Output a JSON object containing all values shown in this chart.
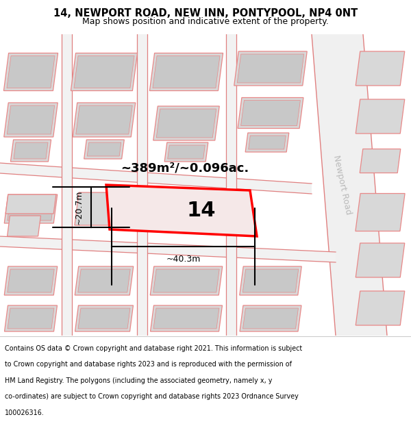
{
  "title_line1": "14, NEWPORT ROAD, NEW INN, PONTYPOOL, NP4 0NT",
  "title_line2": "Map shows position and indicative extent of the property.",
  "footer_lines": [
    "Contains OS data © Crown copyright and database right 2021. This information is subject",
    "to Crown copyright and database rights 2023 and is reproduced with the permission of",
    "HM Land Registry. The polygons (including the associated geometry, namely x, y",
    "co-ordinates) are subject to Crown copyright and database rights 2023 Ordnance Survey",
    "100026316."
  ],
  "area_label": "~389m²/~0.096ac.",
  "width_label": "~40.3m",
  "height_label": "~20.7m",
  "plot_number": "14",
  "road_label": "Newport Road",
  "map_bg": "#f7f7f7",
  "building_fill": "#d8d8d8",
  "building_edge": "#e88888",
  "plot_fill": "#f5e8e8",
  "plot_edge": "#ff0000",
  "footer_bg": "#ffffff",
  "title_bg": "#ffffff",
  "road_label_color": "#bbbbbb"
}
